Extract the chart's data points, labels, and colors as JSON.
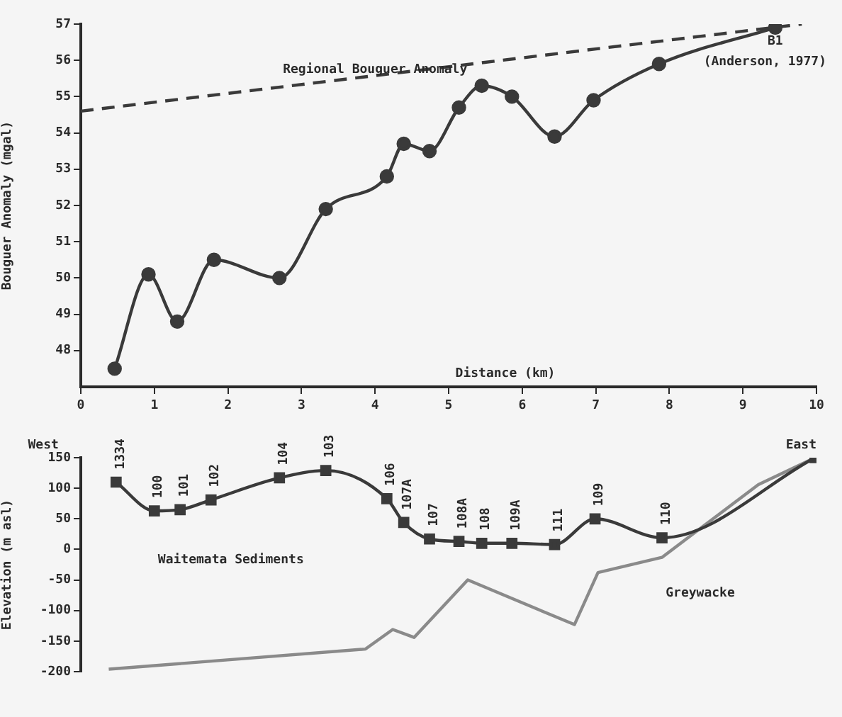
{
  "chart_data": [
    {
      "type": "line",
      "xlabel": "Distance (km)",
      "ylabel": "Bouguer Anomaly (mgal)",
      "xlim": [
        0,
        10
      ],
      "xticks": [
        0,
        1,
        2,
        3,
        4,
        5,
        6,
        7,
        8,
        9,
        10
      ],
      "ylim": [
        47,
        57
      ],
      "yticks": [
        48,
        49,
        50,
        51,
        52,
        53,
        54,
        55,
        56,
        57
      ],
      "grid": false,
      "legend": false,
      "marker": "circle",
      "series": [
        {
          "color": "#3a3a3a",
          "x": [
            0.46,
            0.92,
            1.31,
            1.81,
            2.7,
            3.33,
            4.16,
            4.39,
            4.74,
            5.14,
            5.45,
            5.86,
            6.44,
            6.97,
            7.86,
            9.44
          ],
          "values": [
            47.5,
            50.1,
            48.8,
            50.5,
            50.0,
            51.9,
            52.8,
            53.7,
            53.5,
            54.7,
            55.3,
            55.0,
            53.9,
            54.9,
            55.9,
            56.9
          ]
        },
        {
          "color": "#3a3a3a",
          "x": [
            0,
            9.8
          ],
          "values": [
            54.6,
            57.0
          ],
          "marker": "none",
          "line_style": "dashed"
        }
      ],
      "annotations": [
        {
          "text": "Regional Bouguer Anomaly",
          "x": 4.0,
          "y": 55.75
        },
        "B1",
        "(Anderson, 1977)"
      ]
    },
    {
      "type": "line",
      "ylabel": "Elevation (m asl)",
      "xlim": [
        0,
        10
      ],
      "ylim": [
        -200,
        150
      ],
      "yticks": [
        -200,
        -150,
        -100,
        -50,
        0,
        50,
        100,
        150
      ],
      "tick_labels": "y",
      "grid": false,
      "legend": false,
      "series": [
        {
          "color": "#3a3a3a",
          "marker": "square",
          "x": [
            0.48,
            1.0,
            1.35,
            1.77,
            2.7,
            3.33,
            4.16,
            4.39,
            4.74,
            5.14,
            5.45,
            5.86,
            6.44,
            6.99,
            7.9,
            9.98
          ],
          "values": [
            110,
            63,
            65,
            81,
            117,
            129,
            83,
            44,
            17,
            13,
            10,
            10,
            8,
            50,
            19,
            150
          ]
        },
        {
          "color": "#8a8a8a",
          "marker": "none",
          "x": [
            0.38,
            3.87,
            4.24,
            4.53,
            5.26,
            6.71,
            7.03,
            7.9,
            9.21,
            9.98
          ],
          "values": [
            -196,
            -163,
            -131,
            -144,
            -50,
            -123,
            -38,
            -13,
            106,
            150
          ]
        }
      ],
      "annotations": [
        "West",
        "East",
        "Waitemata Sediments",
        "Greywacke",
        {
          "text": "1334",
          "x": 0.48,
          "y": 110
        },
        {
          "text": "100",
          "x": 1.0,
          "y": 63
        },
        {
          "text": "101",
          "x": 1.35,
          "y": 65
        },
        {
          "text": "102",
          "x": 1.77,
          "y": 81
        },
        {
          "text": "104",
          "x": 2.7,
          "y": 117
        },
        {
          "text": "103",
          "x": 3.33,
          "y": 129
        },
        {
          "text": "106",
          "x": 4.16,
          "y": 83
        },
        {
          "text": "107A",
          "x": 4.39,
          "y": 44
        },
        {
          "text": "107",
          "x": 4.74,
          "y": 17
        },
        {
          "text": "108A",
          "x": 5.14,
          "y": 13
        },
        {
          "text": "108",
          "x": 5.45,
          "y": 10
        },
        {
          "text": "109A",
          "x": 5.86,
          "y": 10
        },
        {
          "text": "111",
          "x": 6.44,
          "y": 8
        },
        {
          "text": "109",
          "x": 6.99,
          "y": 50
        },
        {
          "text": "110",
          "x": 7.9,
          "y": 19
        }
      ]
    }
  ]
}
